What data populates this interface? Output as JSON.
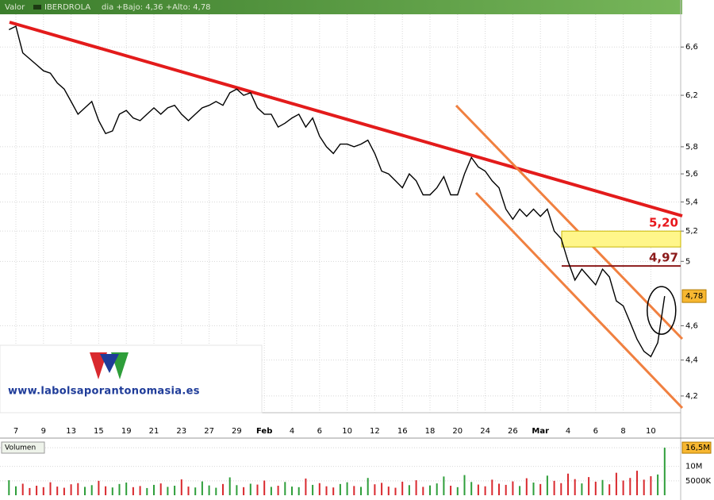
{
  "chart_data": [
    {
      "type": "line",
      "header_label": "Valor",
      "title": "IBERDROLA",
      "subtitle": "dia +Bajo: 4,36 +Alto: 4,78",
      "watermark": "www.labolsaporantonomasia.es",
      "log_scale": true,
      "grid": true,
      "color": "#000000",
      "categories": [
        null,
        "7",
        null,
        null,
        null,
        "9",
        null,
        null,
        null,
        "13",
        null,
        null,
        null,
        "15",
        null,
        null,
        null,
        "19",
        null,
        null,
        null,
        "21",
        null,
        null,
        null,
        "23",
        null,
        null,
        null,
        "27",
        null,
        null,
        null,
        "29",
        null,
        null,
        null,
        "Feb",
        null,
        null,
        null,
        "4",
        null,
        null,
        null,
        "6",
        null,
        null,
        null,
        "10",
        null,
        null,
        null,
        "12",
        null,
        null,
        null,
        "16",
        null,
        null,
        null,
        "18",
        null,
        null,
        null,
        "20",
        null,
        null,
        null,
        "24",
        null,
        null,
        null,
        "26",
        null,
        null,
        null,
        "Mar",
        null,
        null,
        null,
        "4",
        null,
        null,
        null,
        "6",
        null,
        null,
        null,
        "8",
        null,
        null,
        null,
        "10",
        null,
        null
      ],
      "values": [
        6.75,
        6.78,
        6.55,
        6.5,
        6.45,
        6.4,
        6.38,
        6.3,
        6.25,
        6.15,
        6.05,
        6.1,
        6.15,
        6.0,
        5.9,
        5.92,
        6.05,
        6.08,
        6.02,
        6.0,
        6.05,
        6.1,
        6.05,
        6.1,
        6.12,
        6.05,
        6.0,
        6.05,
        6.1,
        6.12,
        6.15,
        6.12,
        6.22,
        6.25,
        6.2,
        6.22,
        6.1,
        6.05,
        6.05,
        5.95,
        5.98,
        6.02,
        6.05,
        5.95,
        6.02,
        5.88,
        5.8,
        5.75,
        5.82,
        5.82,
        5.8,
        5.82,
        5.85,
        5.75,
        5.62,
        5.6,
        5.55,
        5.5,
        5.6,
        5.55,
        5.45,
        5.45,
        5.5,
        5.58,
        5.45,
        5.45,
        5.6,
        5.72,
        5.65,
        5.62,
        5.55,
        5.5,
        5.35,
        5.28,
        5.35,
        5.3,
        5.35,
        5.3,
        5.35,
        5.2,
        5.15,
        5.0,
        4.88,
        4.95,
        4.9,
        4.85,
        4.95,
        4.9,
        4.75,
        4.72,
        4.62,
        4.52,
        4.45,
        4.42,
        4.5,
        4.78
      ],
      "ylim": [
        4.11,
        7.0
      ],
      "yticks": [
        {
          "value": 4.2,
          "label": "4,2"
        },
        {
          "value": 4.4,
          "label": "4,4"
        },
        {
          "value": 4.6,
          "label": "4,6"
        },
        5,
        {
          "value": 5.2,
          "label": "5,2"
        },
        {
          "value": 5.4,
          "label": "5,4"
        },
        {
          "value": 5.6,
          "label": "5,6"
        },
        {
          "value": 5.8,
          "label": "5,8"
        },
        {
          "value": 6.2,
          "label": "6,2"
        },
        {
          "value": 6.6,
          "label": "6,6"
        }
      ],
      "levels": [
        {
          "value": 5.2,
          "label": "5,20",
          "color": "#e8171c"
        },
        {
          "value": 4.97,
          "label": "4,97",
          "color": "#8b1a1a"
        }
      ],
      "last_price": {
        "value": 4.78,
        "label": "4,78"
      }
    },
    {
      "type": "bar",
      "title": "Volumen",
      "values": [
        5200000,
        3100000,
        4000000,
        2500000,
        3300000,
        2800000,
        4500000,
        3000000,
        2600000,
        3800000,
        4200000,
        2900000,
        3500000,
        5000000,
        3100000,
        2700000,
        3900000,
        4400000,
        2800000,
        3200000,
        2500000,
        3600000,
        4100000,
        2900000,
        3300000,
        5500000,
        3000000,
        2700000,
        4800000,
        3400000,
        2600000,
        3900000,
        6200000,
        3500000,
        2800000,
        4000000,
        3700000,
        5100000,
        2900000,
        3300000,
        4600000,
        3000000,
        2800000,
        5800000,
        3600000,
        4200000,
        3100000,
        2700000,
        3900000,
        4500000,
        3200000,
        2900000,
        6000000,
        3800000,
        4300000,
        3000000,
        2600000,
        4700000,
        3500000,
        5200000,
        2900000,
        3400000,
        4100000,
        6500000,
        3300000,
        2800000,
        7000000,
        4600000,
        3700000,
        3100000,
        5400000,
        4000000,
        3600000,
        4800000,
        3200000,
        5900000,
        4400000,
        3900000,
        6800000,
        5000000,
        4200000,
        7500000,
        5600000,
        4100000,
        6300000,
        4700000,
        5300000,
        3800000,
        7800000,
        5100000,
        6000000,
        8500000,
        5400000,
        6600000,
        7200000,
        16500000
      ],
      "ylim": [
        0,
        19000000
      ],
      "yticks": [
        {
          "value": 5000000,
          "label": "5000K"
        },
        {
          "value": 10000000,
          "label": "10M"
        },
        {
          "value": 16500000,
          "label": "16,5M"
        }
      ],
      "up_color": "#2e9e3a",
      "down_color": "#d9292e"
    }
  ]
}
